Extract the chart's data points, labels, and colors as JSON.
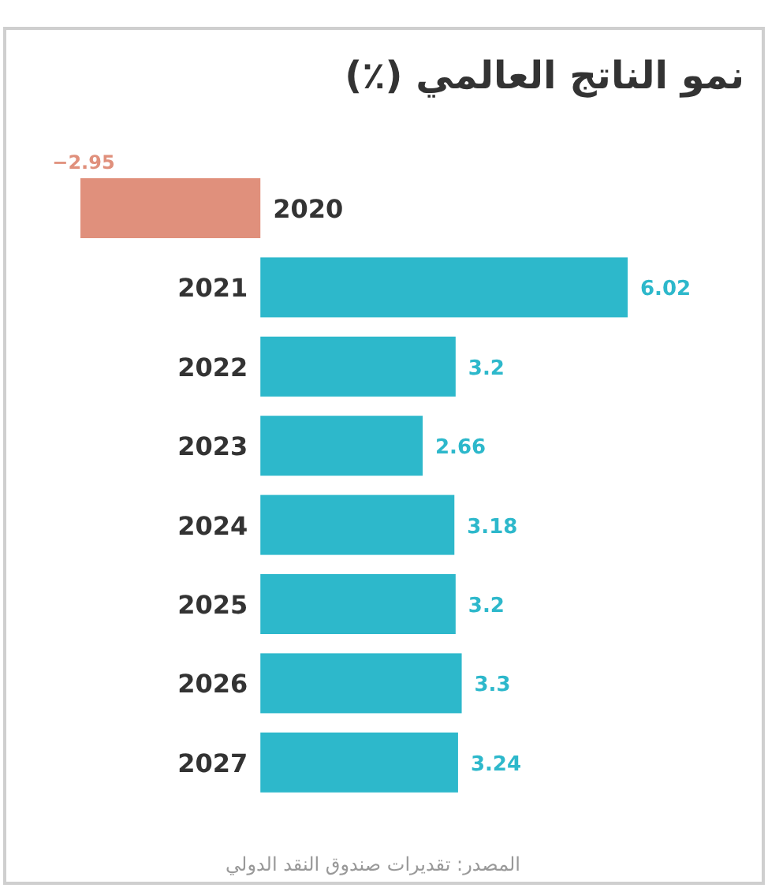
{
  "chart_data": {
    "type": "bar",
    "orientation": "horizontal",
    "title": "نمو الناتج العالمي (٪)",
    "categories": [
      "2020",
      "2021",
      "2022",
      "2023",
      "2024",
      "2025",
      "2026",
      "2027"
    ],
    "values": [
      -2.95,
      6.02,
      3.2,
      2.66,
      3.18,
      3.2,
      3.3,
      3.24
    ],
    "colors": [
      "#e0907c",
      "#2db8cb",
      "#2db8cb",
      "#2db8cb",
      "#2db8cb",
      "#2db8cb",
      "#2db8cb",
      "#2db8cb"
    ],
    "data_labels": true,
    "annotations": [
      "المصدر: تقديرات صندوق النقد الدولي"
    ]
  }
}
